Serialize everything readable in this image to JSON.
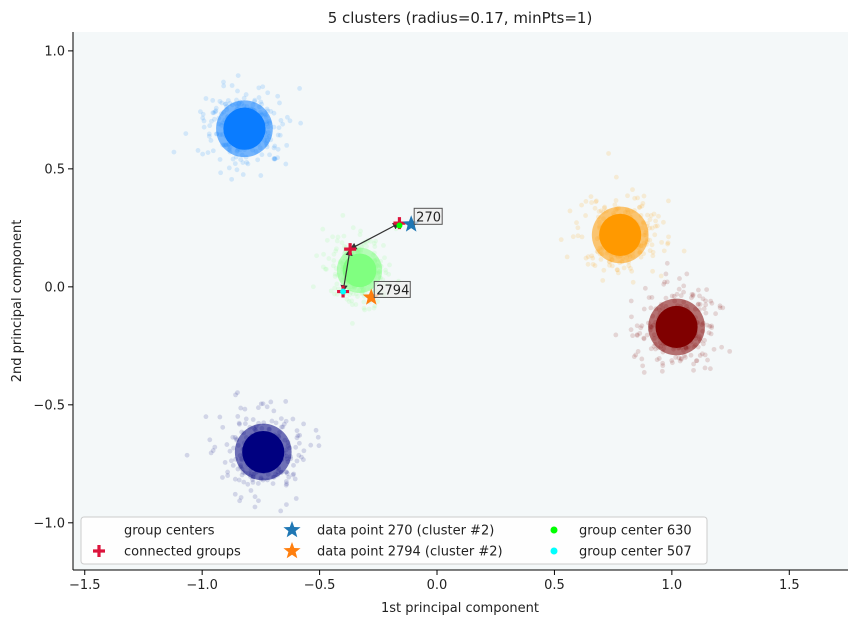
{
  "chart_data": {
    "type": "scatter",
    "title": "5 clusters (radius=0.17, minPts=1)",
    "xlabel": "1st principal component",
    "ylabel": "2nd principal component",
    "xlim": [
      -1.55,
      1.75
    ],
    "ylim": [
      -1.2,
      1.08
    ],
    "x_ticks": [
      -1.5,
      -1.0,
      -0.5,
      0.0,
      0.5,
      1.0,
      1.5
    ],
    "y_ticks": [
      -1.0,
      -0.5,
      0.0,
      0.5,
      1.0
    ],
    "x_tick_labels": [
      "−1.5",
      "−1.0",
      "−0.5",
      "0.0",
      "0.5",
      "1.0",
      "1.5"
    ],
    "y_tick_labels": [
      "−1.0",
      "−0.5",
      "0.0",
      "0.5",
      "1.0"
    ],
    "grid": false,
    "background_color": "#f4f8f9",
    "clusters": [
      {
        "center": [
          -0.82,
          0.67
        ],
        "spread": 0.1,
        "color": "#0a7cff"
      },
      {
        "center": [
          -0.33,
          0.07
        ],
        "spread": 0.08,
        "color": "#80ff80"
      },
      {
        "center": [
          0.78,
          0.22
        ],
        "spread": 0.1,
        "color": "#ff9900"
      },
      {
        "center": [
          1.02,
          -0.17
        ],
        "spread": 0.1,
        "color": "#800000"
      },
      {
        "center": [
          -0.74,
          -0.7
        ],
        "spread": 0.1,
        "color": "#000080"
      }
    ],
    "connected_groups": [
      [
        -0.37,
        0.16
      ],
      [
        -0.16,
        0.27
      ],
      [
        -0.4,
        -0.02
      ]
    ],
    "group_center_630": [
      -0.16,
      0.26
    ],
    "group_center_507": [
      -0.4,
      -0.02
    ],
    "path": [
      [
        -0.16,
        0.27
      ],
      [
        -0.37,
        0.16
      ],
      [
        -0.4,
        -0.02
      ]
    ],
    "data_points": [
      {
        "label": "270",
        "x": -0.11,
        "y": 0.265,
        "color": "#1f77b4"
      },
      {
        "label": "2794",
        "x": -0.28,
        "y": -0.045,
        "color": "#ff7f0e"
      }
    ],
    "connected_color": "#dc143c",
    "center_630_color": "#00ff00",
    "center_507_color": "#00ffff",
    "legend": {
      "placement": "lower-center",
      "entries": [
        {
          "label": "group centers",
          "marker": "none"
        },
        {
          "label": "connected groups",
          "marker": "plus"
        },
        {
          "label": "data point 270 (cluster #2)",
          "marker": "star-blue"
        },
        {
          "label": "data point 2794 (cluster #2)",
          "marker": "star-orange"
        },
        {
          "label": "group center 630",
          "marker": "dot-green"
        },
        {
          "label": "group center 507",
          "marker": "dot-cyan"
        }
      ]
    }
  }
}
